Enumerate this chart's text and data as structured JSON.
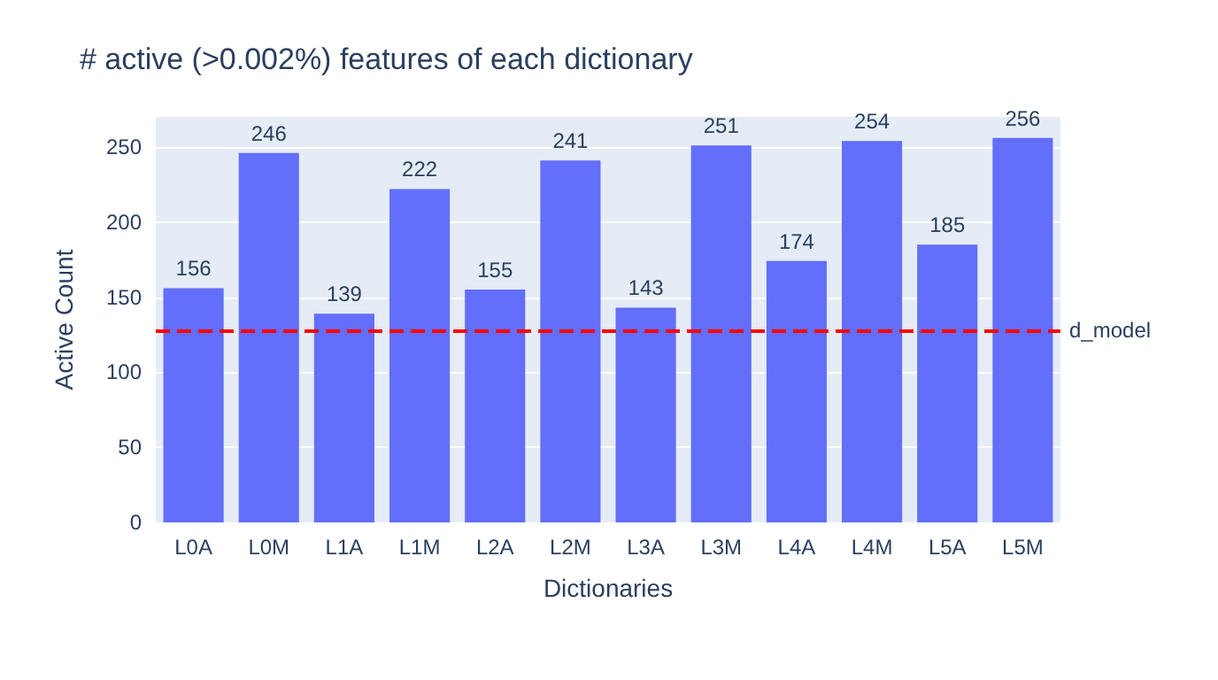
{
  "chart_data": {
    "type": "bar",
    "title": "# active (>0.002%) features of each dictionary",
    "xlabel": "Dictionaries",
    "ylabel": "Active Count",
    "categories": [
      "L0A",
      "L0M",
      "L1A",
      "L1M",
      "L2A",
      "L2M",
      "L3A",
      "L3M",
      "L4A",
      "L4M",
      "L5A",
      "L5M"
    ],
    "values": [
      156,
      246,
      139,
      222,
      155,
      241,
      143,
      251,
      174,
      254,
      185,
      256
    ],
    "color": "#636efa",
    "data_labels": true,
    "grid": "y",
    "ylim": [
      0,
      270
    ],
    "yticks": [
      0,
      50,
      100,
      150,
      200,
      250
    ],
    "ref_lines": [
      {
        "axis": "y",
        "value": 128,
        "label": "d_model",
        "color": "#ff0000",
        "line_style": "dashed"
      }
    ]
  }
}
